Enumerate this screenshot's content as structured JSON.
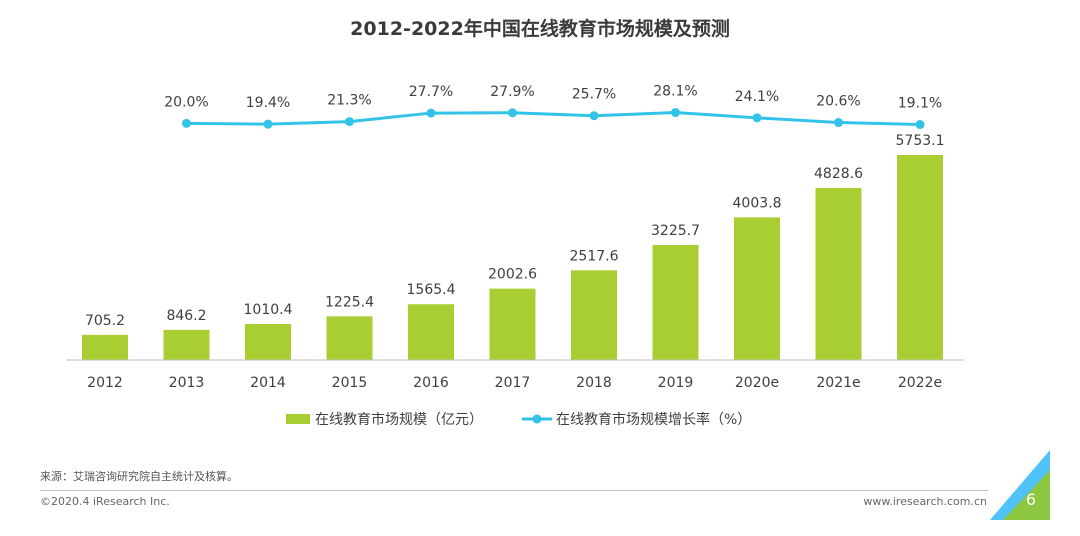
{
  "page": {
    "title": "2012-2022年中国在线教育市场规模及预测",
    "source": "来源：艾瑞咨询研究院自主统计及核算。",
    "copyright": "©2020.4 iResearch Inc.",
    "url": "www.iresearch.com.cn",
    "page_number": "6"
  },
  "colors": {
    "bar": "#A9CE32",
    "line": "#33C3E8",
    "corner_green": "#8DC63F",
    "corner_blue": "#4FC3F7"
  },
  "chart_data": {
    "type": "bar",
    "title": "2012-2022年中国在线教育市场规模及预测",
    "categories": [
      "2012",
      "2013",
      "2014",
      "2015",
      "2016",
      "2017",
      "2018",
      "2019",
      "2020e",
      "2021e",
      "2022e"
    ],
    "series": [
      {
        "name": "在线教育市场规模（亿元）",
        "type": "bar",
        "values": [
          705.2,
          846.2,
          1010.4,
          1225.4,
          1565.4,
          2002.6,
          2517.6,
          3225.7,
          4003.8,
          4828.6,
          5753.1
        ],
        "labels": [
          "705.2",
          "846.2",
          "1010.4",
          "1225.4",
          "1565.4",
          "2002.6",
          "2517.6",
          "3225.7",
          "4003.8",
          "4828.6",
          "5753.1"
        ]
      },
      {
        "name": "在线教育市场规模增长率（%）",
        "type": "line",
        "values": [
          null,
          20.0,
          19.4,
          21.3,
          27.7,
          27.9,
          25.7,
          28.1,
          24.1,
          20.6,
          19.1
        ],
        "labels": [
          "",
          "20.0%",
          "19.4%",
          "21.3%",
          "27.7%",
          "27.9%",
          "25.7%",
          "28.1%",
          "24.1%",
          "20.6%",
          "19.1%"
        ]
      }
    ],
    "legend": [
      {
        "marker": "bar",
        "label": "在线教育市场规模（亿元）"
      },
      {
        "marker": "line",
        "label": "在线教育市场规模增长率（%）"
      }
    ],
    "legend_position": "bottom"
  }
}
